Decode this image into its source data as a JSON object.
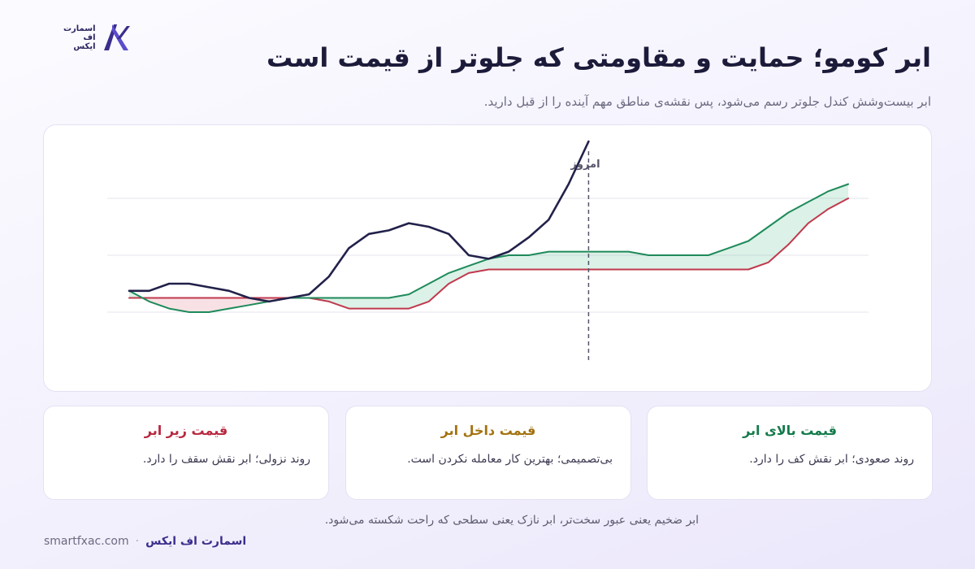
{
  "logo": {
    "line1": "اسمارت",
    "line2": "اف",
    "line3": "ایکس"
  },
  "title": "ابر کومو؛ حمایت و مقاومتی که جلوتر از قیمت است",
  "subtitle": "ابر بیست‌وشش کندل جلوتر رسم می‌شود، پس نقشه‌ی مناطق مهم آینده را از قبل دارید.",
  "chart_data": {
    "type": "line",
    "annotations": [
      {
        "label": "امروز",
        "x": 46
      }
    ],
    "grid": true,
    "x": [
      0,
      2,
      4,
      6,
      8,
      10,
      12,
      14,
      16,
      18,
      20,
      22,
      24,
      26,
      28,
      30,
      32,
      34,
      36,
      38,
      40,
      42,
      44,
      46,
      48,
      50,
      52,
      54,
      56,
      58,
      60,
      62,
      64,
      66,
      68,
      70,
      72
    ],
    "series": [
      {
        "name": "price",
        "color": "#22214a",
        "values": [
          11,
          11,
          12,
          12,
          11.5,
          11,
          10,
          9.5,
          10,
          10.5,
          13,
          17,
          19,
          19.5,
          20.5,
          20,
          19,
          16,
          15.5,
          16.5,
          18.5,
          21,
          26,
          32,
          null,
          null,
          null,
          null,
          null,
          null,
          null,
          null,
          null,
          null,
          null,
          null,
          null
        ]
      },
      {
        "name": "cloud_top",
        "color": "#1e8a5a",
        "values": [
          11,
          9.5,
          8.5,
          8,
          8,
          8.5,
          9,
          9.5,
          10,
          10,
          10,
          10,
          10,
          10,
          10.5,
          12,
          13.5,
          14.5,
          15.5,
          16,
          16,
          16.5,
          16.5,
          16.5,
          16.5,
          16.5,
          16,
          16,
          16,
          16,
          17,
          18,
          20,
          22,
          23.5,
          25,
          26
        ]
      },
      {
        "name": "cloud_bottom",
        "color": "#c0394d",
        "values": [
          10,
          10,
          10,
          10,
          10,
          10,
          10,
          10,
          10,
          10,
          9.5,
          8.5,
          8.5,
          8.5,
          8.5,
          9.5,
          12,
          13.5,
          14,
          14,
          14,
          14,
          14,
          14,
          14,
          14,
          14,
          14,
          14,
          14,
          14,
          14,
          15,
          17.5,
          20.5,
          22.5,
          24
        ]
      }
    ],
    "ylim": [
      0,
      32
    ]
  },
  "cards": {
    "above": {
      "title": "قیمت بالای ابر",
      "text": "روند صعودی؛ ابر نقش کف را دارد.",
      "color": "#137a4a"
    },
    "inside": {
      "title": "قیمت داخل ابر",
      "text": "بی‌تصمیمی؛ بهترین کار معامله نکردن است.",
      "color": "#a3720f"
    },
    "below": {
      "title": "قیمت زیر ابر",
      "text": "روند نزولی؛ ابر نقش سقف را دارد.",
      "color": "#b8283f"
    }
  },
  "footnote": "ابر ضخیم یعنی عبور سخت‌تر، ابر نازک یعنی سطحی که راحت شکسته می‌شود.",
  "footer": {
    "brand": "اسمارت اف ایکس",
    "site": "smartfxac.com"
  }
}
